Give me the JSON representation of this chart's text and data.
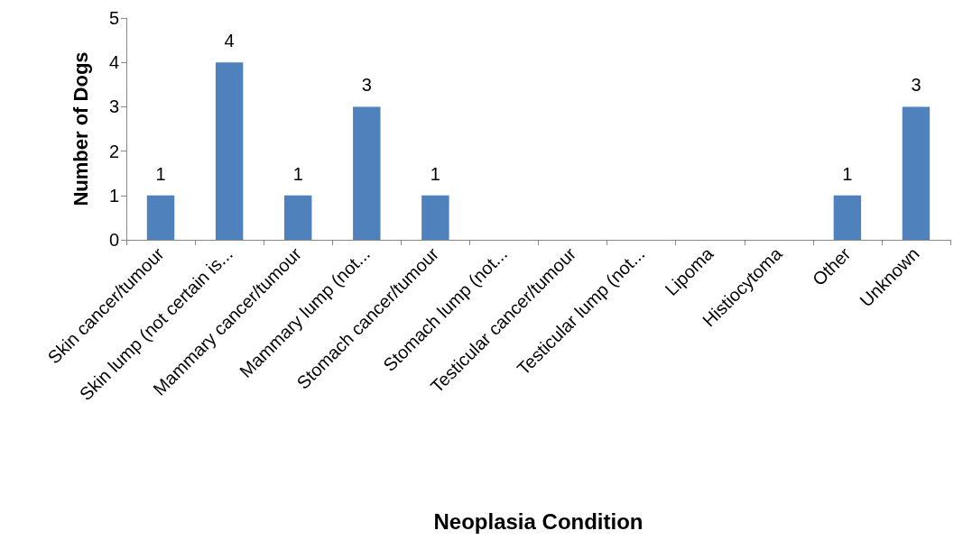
{
  "chart_data": {
    "type": "bar",
    "xlabel": "Neoplasia Condition",
    "ylabel": "Number of Dogs",
    "categories": [
      "Skin cancer/tumour",
      "Skin lump (not certain is...",
      "Mammary cancer/tumour",
      "Mammary lump (not...",
      "Stomach cancer/tumour",
      "Stomach lump (not...",
      "Testicular cancer/tumour",
      "Testicular lump (not...",
      "Lipoma",
      "Histiocytoma",
      "Other",
      "Unknown"
    ],
    "values": [
      1,
      4,
      1,
      3,
      1,
      0,
      0,
      0,
      0,
      0,
      1,
      3
    ],
    "value_labels": [
      "1",
      "4",
      "1",
      "3",
      "1",
      null,
      null,
      null,
      null,
      null,
      "1",
      "3"
    ],
    "color": "#4f81bd",
    "ylim": [
      0,
      5
    ],
    "yticks": [
      0,
      1,
      2,
      3,
      4,
      5
    ],
    "grid": false
  }
}
